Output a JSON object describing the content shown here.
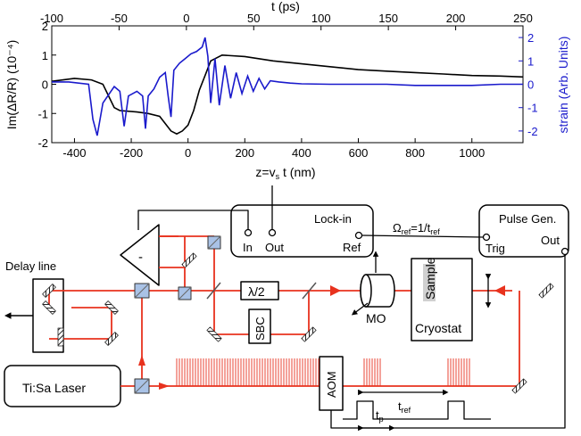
{
  "chart_data": {
    "type": "line",
    "top_axis": {
      "label": "t (ps)",
      "range": [
        -100,
        250
      ],
      "ticks": [
        -100,
        -50,
        0,
        50,
        100,
        150,
        200,
        250
      ]
    },
    "x_axis": {
      "label": "z=vₛt (nm)",
      "range": [
        -480,
        1180
      ],
      "ticks": [
        -400,
        -200,
        0,
        200,
        400,
        600,
        800,
        1000
      ]
    },
    "y_left": {
      "label": "Im(ΔR/R) (10⁻⁴)",
      "range": [
        -2,
        2
      ],
      "ticks": [
        -2,
        -1,
        0,
        1,
        2
      ],
      "color": "#000000"
    },
    "y_right": {
      "label": "strain (Arb. Units)",
      "range": [
        -2.5,
        2.5
      ],
      "ticks": [
        -2,
        -1,
        0,
        1,
        2
      ],
      "color": "#1a1acc"
    },
    "series": [
      {
        "axis": "left",
        "color": "#000000",
        "x": [
          -480,
          -400,
          -340,
          -300,
          -260,
          -240,
          -180,
          -140,
          -100,
          -60,
          -40,
          -20,
          0,
          20,
          40,
          60,
          80,
          120,
          200,
          300,
          400,
          500,
          600,
          700,
          800,
          900,
          1000,
          1100,
          1180
        ],
        "y": [
          0.1,
          0.2,
          0.15,
          0,
          -0.8,
          -0.9,
          -0.95,
          -1.0,
          -1.1,
          -1.6,
          -1.7,
          -1.6,
          -1.4,
          -0.9,
          -0.2,
          0.3,
          0.8,
          1.0,
          0.95,
          0.8,
          0.7,
          0.6,
          0.5,
          0.45,
          0.4,
          0.35,
          0.3,
          0.28,
          0.25
        ]
      },
      {
        "axis": "right",
        "color": "#1a1acc",
        "x": [
          -480,
          -420,
          -350,
          -335,
          -320,
          -300,
          -260,
          -240,
          -225,
          -210,
          -180,
          -160,
          -150,
          -140,
          -120,
          -100,
          -80,
          -70,
          -60,
          -50,
          -30,
          -10,
          10,
          30,
          50,
          60,
          70,
          80,
          95,
          110,
          130,
          150,
          170,
          190,
          210,
          230,
          250,
          270,
          290,
          320,
          360,
          400,
          500,
          600,
          700,
          800,
          900,
          1000,
          1100,
          1180
        ],
        "y": [
          0.1,
          0.1,
          0,
          -1.5,
          -2.2,
          -0.8,
          -0.1,
          -0.3,
          -1.8,
          -0.5,
          -0.3,
          -0.5,
          -1.9,
          -0.5,
          -0.2,
          0.3,
          0.5,
          -0.5,
          -1.4,
          0.6,
          0.9,
          1.1,
          1.3,
          1.4,
          1.6,
          2.0,
          1.2,
          -0.8,
          1.1,
          -0.9,
          0.8,
          -0.6,
          0.5,
          -0.4,
          0.35,
          -0.3,
          0.25,
          -0.2,
          0.15,
          0.1,
          0.05,
          0.02,
          0,
          0,
          0,
          -0.05,
          -0.05,
          -0.05,
          0,
          0
        ]
      }
    ]
  },
  "diagram": {
    "labels": {
      "delay_line": "Delay line",
      "lockin": "Lock-in",
      "in": "In",
      "out": "Out",
      "ref": "Ref",
      "omega_ref": "Ω",
      "omega_ref_sub": "ref",
      "omega_eq": "=1/t",
      "omega_eq_sub": "ref",
      "pulse_gen": "Pulse Gen.",
      "trig": "Trig",
      "pulse_out": "Out",
      "half_wave": "λ/2",
      "sbc": "SBC",
      "mo": "MO",
      "sample": "Sample",
      "cryostat": "Cryostat",
      "laser": "Ti:Sa Laser",
      "aom": "AOM",
      "tp": "t",
      "tp_sub": "p",
      "tref": "t",
      "tref_sub": "ref",
      "minus": "-"
    }
  }
}
